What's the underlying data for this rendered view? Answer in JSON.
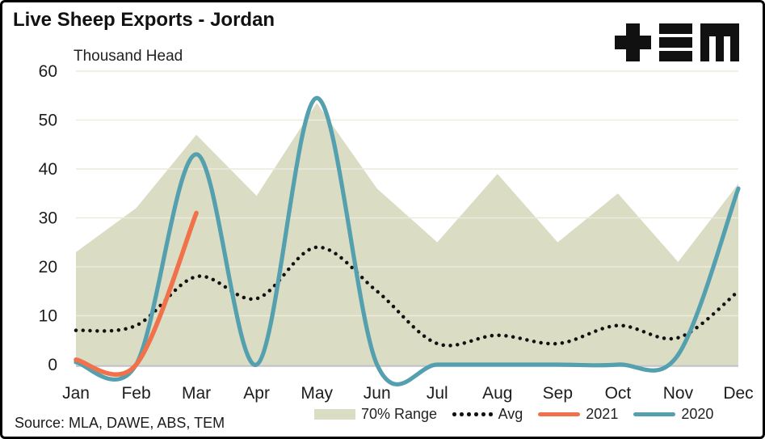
{
  "header": {
    "title": "Live Sheep Exports - Jordan",
    "logo": "tem-logo"
  },
  "footer": {
    "source": "Source: MLA, DAWE, ABS, TEM"
  },
  "legend": {
    "items": [
      {
        "label": "70% Range",
        "type": "area",
        "color": "#dadcc4"
      },
      {
        "label": "Avg",
        "type": "dots",
        "color": "#111111"
      },
      {
        "label": "2021",
        "type": "line",
        "color": "#f0714a"
      },
      {
        "label": "2020",
        "type": "line",
        "color": "#55a0ae"
      }
    ]
  },
  "chart_data": {
    "type": "line",
    "title": "Live Sheep Exports - Jordan",
    "ylabel": "Thousand Head",
    "xlabel": "",
    "ylim": [
      0,
      60
    ],
    "yticks": [
      0,
      10,
      20,
      30,
      40,
      50,
      60
    ],
    "grid": true,
    "legend_position": "bottom",
    "categories": [
      "Jan",
      "Feb",
      "Mar",
      "Apr",
      "May",
      "Jun",
      "Jul",
      "Aug",
      "Sep",
      "Oct",
      "Nov",
      "Dec"
    ],
    "series": [
      {
        "name": "70% Range",
        "type": "area",
        "color": "#dadcc4",
        "upper": [
          23,
          32,
          47,
          34.5,
          53.5,
          36,
          25,
          39,
          25,
          35,
          21,
          37
        ],
        "lower": [
          0,
          0,
          0,
          0,
          0,
          0,
          0,
          0,
          0,
          0,
          0,
          0
        ]
      },
      {
        "name": "Avg",
        "type": "dotted-line",
        "color": "#111111",
        "values": [
          7,
          8,
          18,
          13.5,
          24,
          15,
          4.3,
          6,
          4.3,
          8,
          5.5,
          15
        ]
      },
      {
        "name": "2020",
        "type": "line",
        "color": "#55a0ae",
        "values": [
          0.5,
          0,
          43,
          0,
          54.5,
          0,
          0,
          0,
          0,
          0,
          2,
          36
        ]
      },
      {
        "name": "2021",
        "type": "line",
        "color": "#f0714a",
        "values": [
          1,
          0,
          31
        ]
      }
    ],
    "colors": {
      "grid": "#eceadc",
      "axis": "#c3c3c3",
      "tick_text": "#1c1c1c"
    }
  }
}
